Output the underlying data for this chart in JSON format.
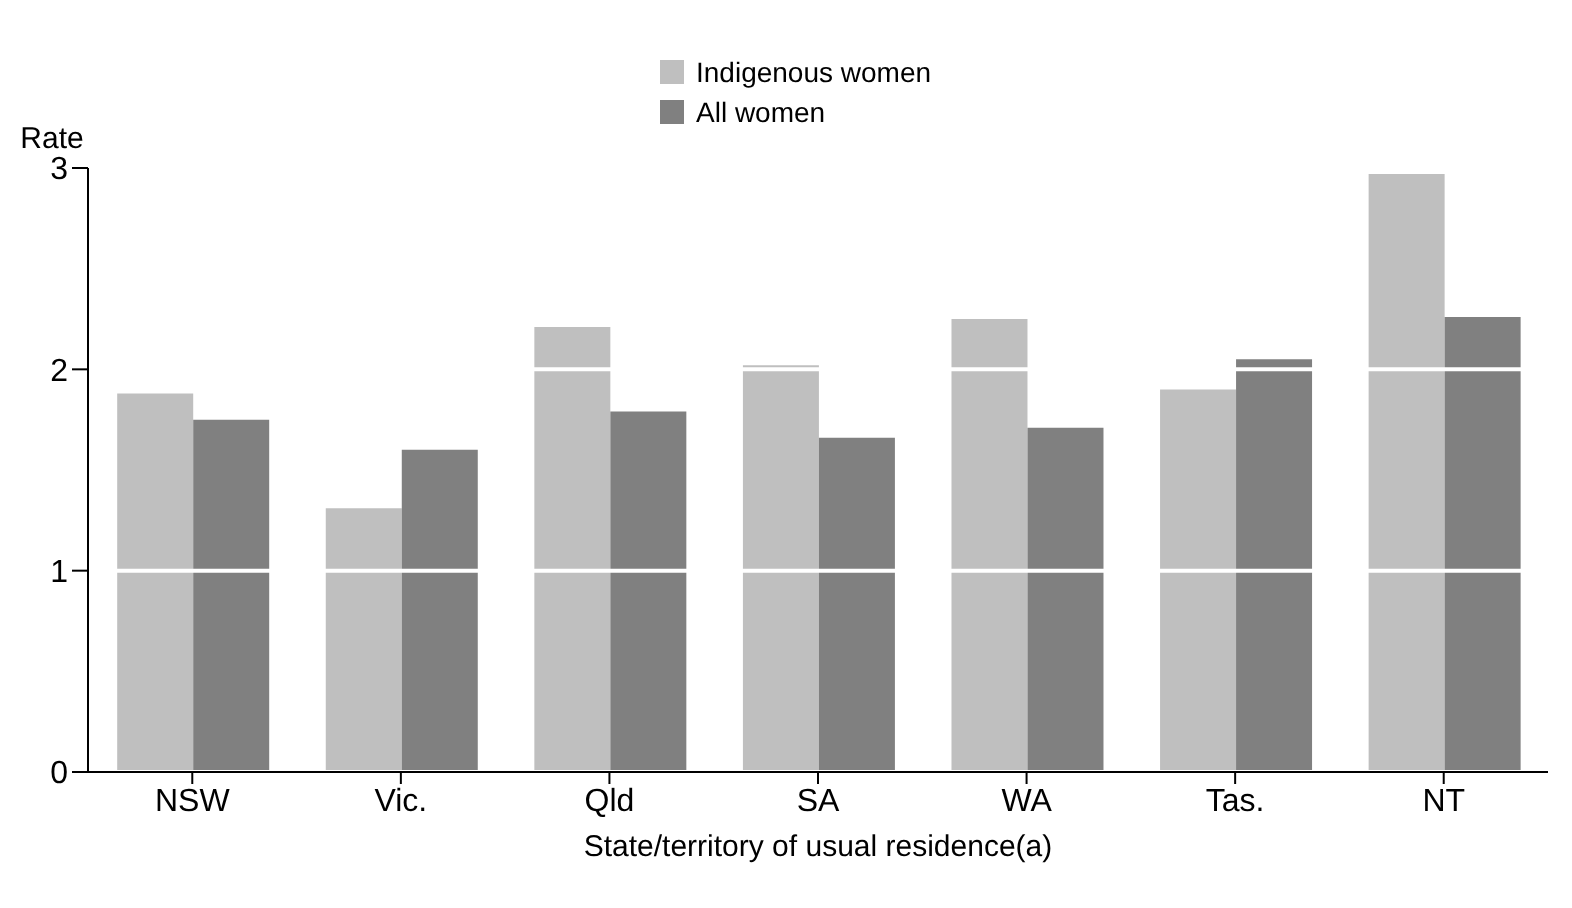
{
  "chart_data": {
    "type": "bar",
    "xlabel": "State/territory of usual residence(a)",
    "ylabel": "Rate",
    "categories": [
      "NSW",
      "Vic.",
      "Qld",
      "SA",
      "WA",
      "Tas.",
      "NT"
    ],
    "series": [
      {
        "name": "Indigenous women",
        "color": "#bfbfbf",
        "values": [
          1.88,
          1.31,
          2.21,
          2.02,
          2.25,
          1.9,
          2.97
        ]
      },
      {
        "name": "All women",
        "color": "#808080",
        "values": [
          1.75,
          1.6,
          1.79,
          1.66,
          1.71,
          2.05,
          2.26
        ]
      }
    ],
    "ylim": [
      0,
      3
    ],
    "yticks": [
      0,
      1,
      2,
      3
    ],
    "grid": "y",
    "legend": "top"
  }
}
